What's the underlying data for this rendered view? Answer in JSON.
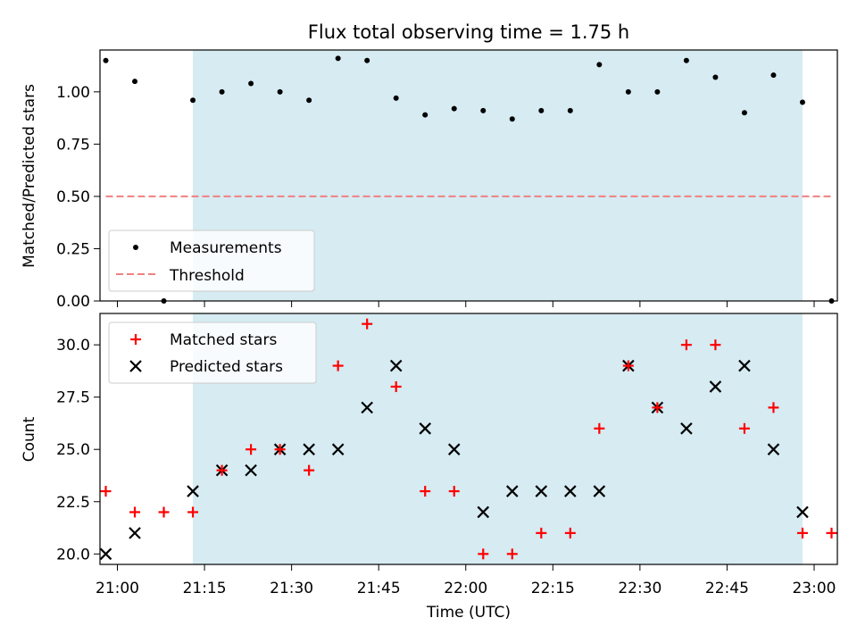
{
  "figure": {
    "title": "Flux total observing time = 1.75 h",
    "xlabel": "Time (UTC)"
  },
  "colors": {
    "highlight_band": "#add8e6",
    "threshold_line": "#f08080",
    "matched": "#ff0000",
    "predicted": "#000000",
    "measurement": "#000000"
  },
  "x_tick_labels": [
    "21:00",
    "21:15",
    "21:30",
    "21:45",
    "22:00",
    "22:15",
    "22:30",
    "22:45",
    "23:00"
  ],
  "chart_data": [
    {
      "type": "scatter",
      "panel": "top",
      "ylabel": "Matched/Predicted stars",
      "ylim": [
        0.0,
        1.2
      ],
      "yticks": [
        "0.00",
        "0.25",
        "0.50",
        "0.75",
        "1.00"
      ],
      "xlim": [
        "20:57",
        "23:04"
      ],
      "highlight_span": [
        "21:13",
        "22:58"
      ],
      "legend_position": "lower-left",
      "series": [
        {
          "name": "Measurements",
          "marker": "dot",
          "x": [
            "20:58",
            "21:03",
            "21:08",
            "21:13",
            "21:18",
            "21:23",
            "21:28",
            "21:33",
            "21:38",
            "21:43",
            "21:48",
            "21:53",
            "21:58",
            "22:03",
            "22:08",
            "22:13",
            "22:18",
            "22:23",
            "22:28",
            "22:33",
            "22:38",
            "22:43",
            "22:48",
            "22:53",
            "22:58",
            "23:03"
          ],
          "y": [
            1.15,
            1.05,
            0.0,
            0.96,
            1.0,
            1.04,
            1.0,
            0.96,
            1.16,
            1.15,
            0.97,
            0.89,
            0.92,
            0.91,
            0.87,
            0.91,
            0.91,
            1.13,
            1.0,
            1.0,
            1.15,
            1.07,
            0.9,
            1.08,
            0.95,
            0.0
          ]
        },
        {
          "name": "Threshold",
          "style": "dashed",
          "x": [
            "20:58",
            "23:03"
          ],
          "y": [
            0.5,
            0.5
          ]
        }
      ]
    },
    {
      "type": "scatter",
      "panel": "bottom",
      "ylabel": "Count",
      "ylim": [
        19.5,
        31.5
      ],
      "yticks": [
        "20.0",
        "22.5",
        "25.0",
        "27.5",
        "30.0"
      ],
      "xlim": [
        "20:57",
        "23:04"
      ],
      "highlight_span": [
        "21:13",
        "22:58"
      ],
      "legend_position": "upper-left",
      "series": [
        {
          "name": "Matched stars",
          "marker": "plus",
          "x": [
            "20:58",
            "21:03",
            "21:08",
            "21:13",
            "21:18",
            "21:23",
            "21:28",
            "21:33",
            "21:38",
            "21:43",
            "21:48",
            "21:53",
            "21:58",
            "22:03",
            "22:08",
            "22:13",
            "22:18",
            "22:23",
            "22:28",
            "22:33",
            "22:38",
            "22:43",
            "22:48",
            "22:53",
            "22:58",
            "23:03"
          ],
          "y": [
            23,
            22,
            22,
            22,
            24,
            25,
            25,
            24,
            29,
            31,
            28,
            23,
            23,
            20,
            20,
            21,
            21,
            26,
            29,
            27,
            30,
            30,
            26,
            27,
            21,
            21
          ]
        },
        {
          "name": "Predicted stars",
          "marker": "x",
          "x": [
            "20:58",
            "21:03",
            "21:13",
            "21:18",
            "21:23",
            "21:28",
            "21:33",
            "21:38",
            "21:43",
            "21:48",
            "21:53",
            "21:58",
            "22:03",
            "22:08",
            "22:13",
            "22:18",
            "22:23",
            "22:28",
            "22:33",
            "22:38",
            "22:43",
            "22:48",
            "22:53",
            "22:58"
          ],
          "y": [
            20,
            21,
            23,
            24,
            24,
            25,
            25,
            25,
            27,
            29,
            26,
            25,
            22,
            23,
            23,
            23,
            23,
            29,
            27,
            26,
            28,
            29,
            25,
            22
          ]
        }
      ]
    }
  ]
}
